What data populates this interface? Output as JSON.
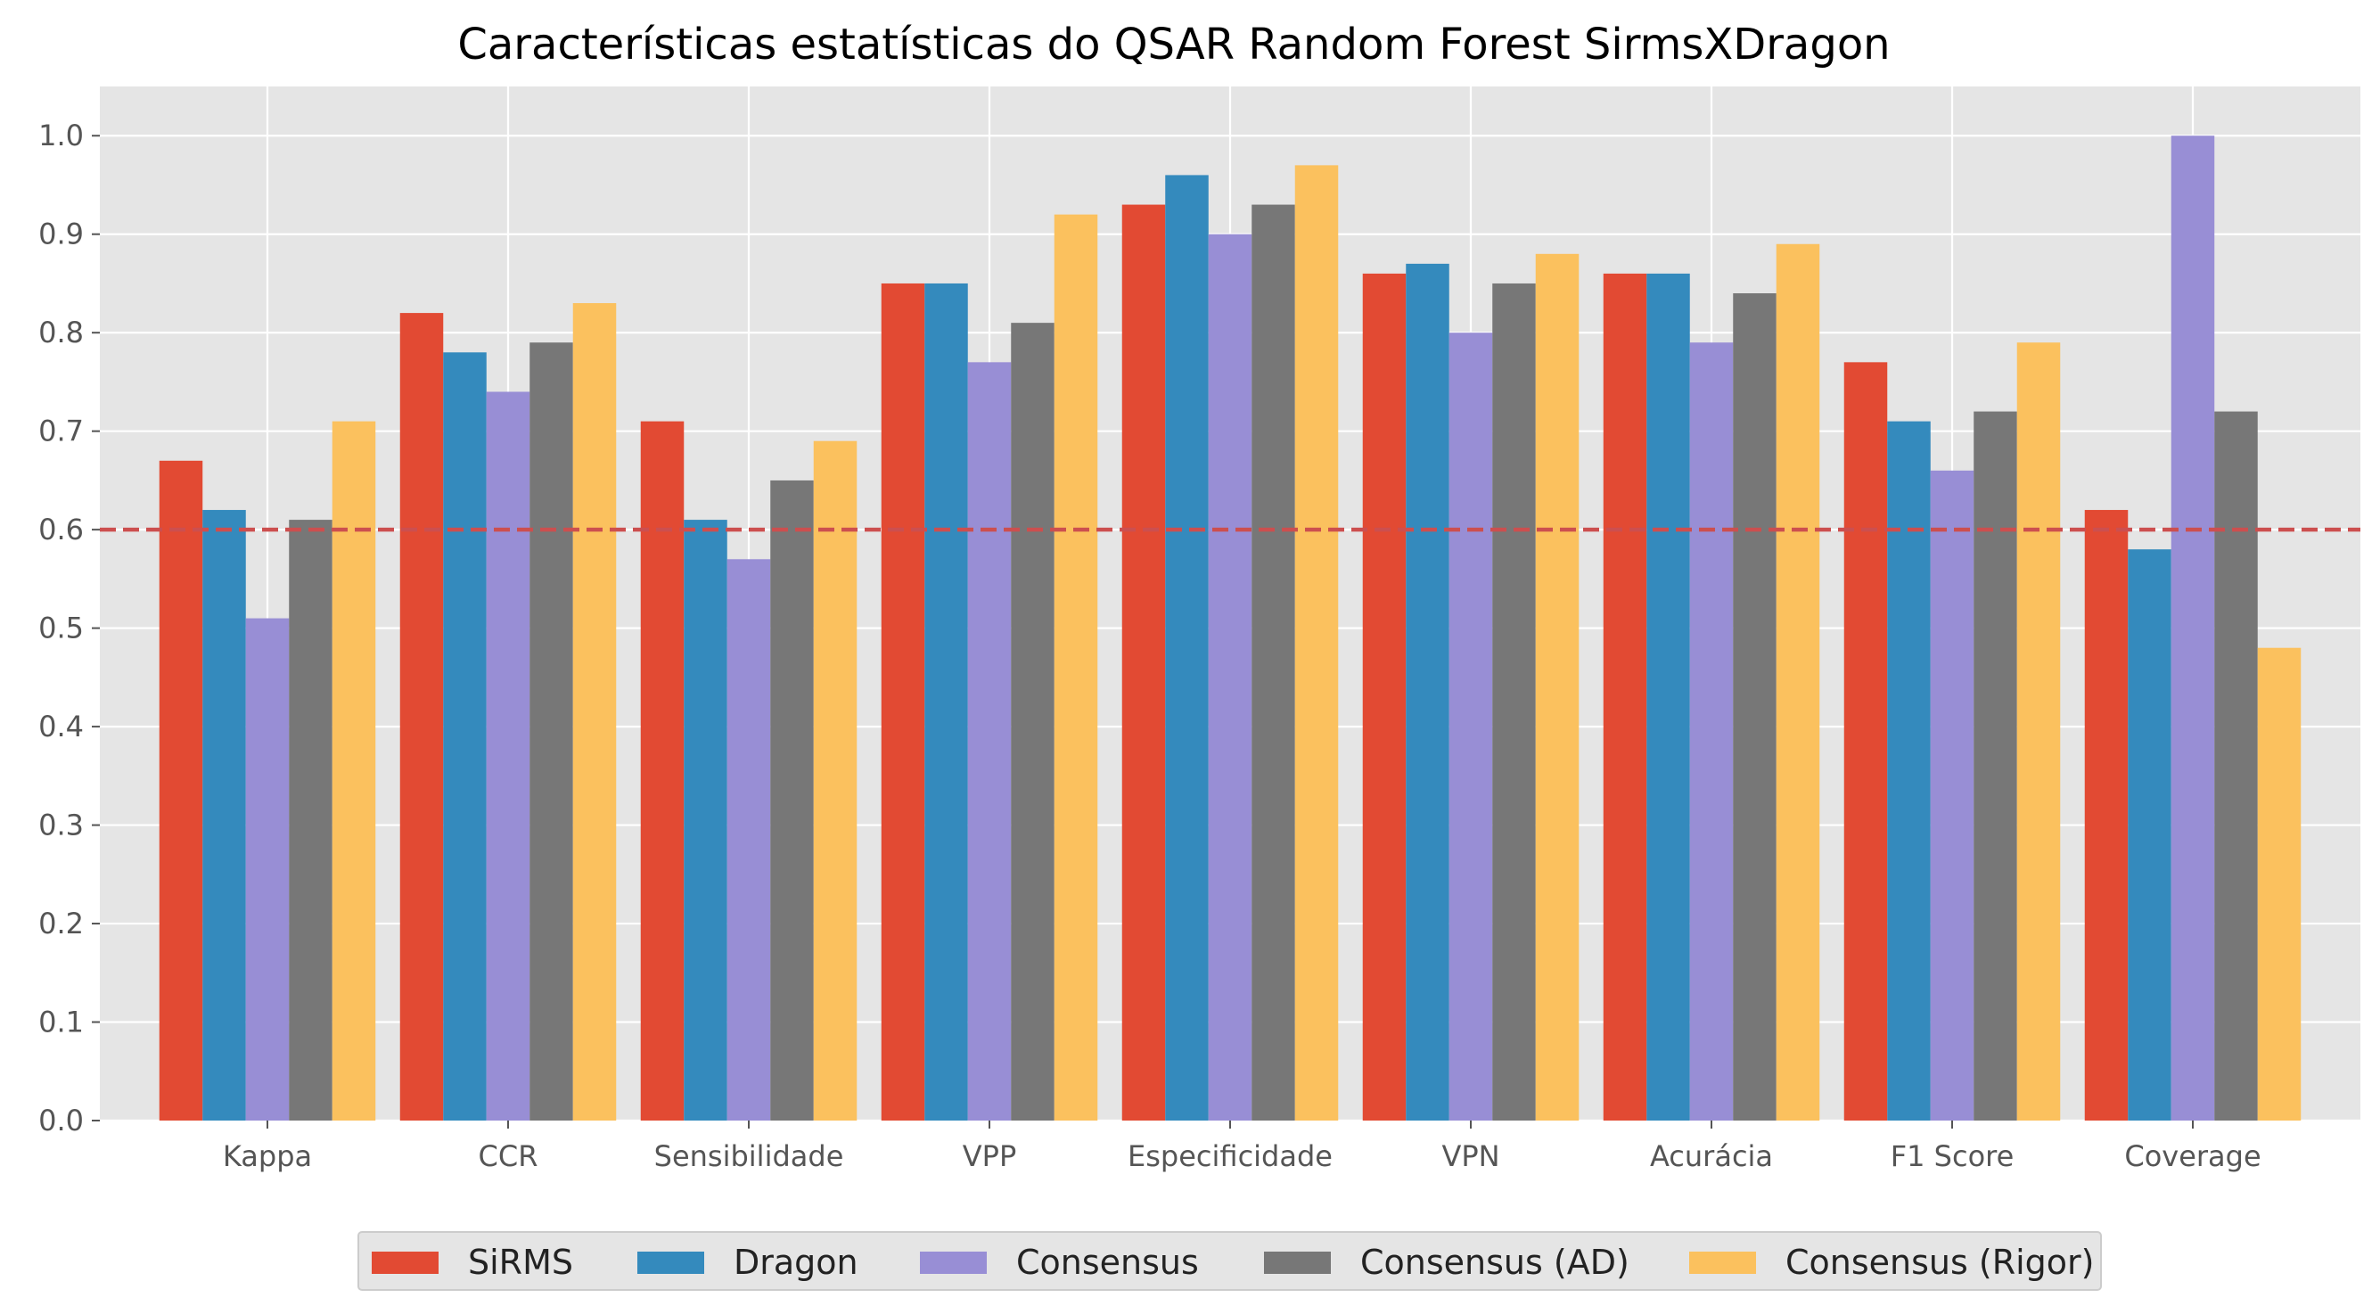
{
  "chart_data": {
    "type": "bar",
    "title": "Características estatísticas do QSAR Random Forest SirmsXDragon",
    "xlabel": "",
    "ylabel": "",
    "categories": [
      "Kappa",
      "CCR",
      "Sensibilidade",
      "VPP",
      "Especificidade",
      "VPN",
      "Acurácia",
      "F1 Score",
      "Coverage"
    ],
    "ylim": [
      0.0,
      1.05
    ],
    "yticks": [
      0.0,
      0.1,
      0.2,
      0.3,
      0.4,
      0.5,
      0.6,
      0.7,
      0.8,
      0.9,
      1.0
    ],
    "ytick_labels": [
      "0.0",
      "0.1",
      "0.2",
      "0.3",
      "0.4",
      "0.5",
      "0.6",
      "0.7",
      "0.8",
      "0.9",
      "1.0"
    ],
    "grid": true,
    "background": "#e5e5e5",
    "reference_line": {
      "y": 0.6,
      "style": "dashed",
      "color": "#cc4f4f"
    },
    "legend_placement": "bottom-center",
    "series": [
      {
        "name": "SiRMS",
        "color": "#e24a33",
        "values": [
          0.67,
          0.82,
          0.71,
          0.85,
          0.93,
          0.86,
          0.86,
          0.77,
          0.62
        ]
      },
      {
        "name": "Dragon",
        "color": "#348abd",
        "values": [
          0.62,
          0.78,
          0.61,
          0.85,
          0.96,
          0.87,
          0.86,
          0.71,
          0.58
        ]
      },
      {
        "name": "Consensus",
        "color": "#988ed5",
        "values": [
          0.51,
          0.74,
          0.57,
          0.77,
          0.9,
          0.8,
          0.79,
          0.66,
          1.0
        ]
      },
      {
        "name": "Consensus (AD)",
        "color": "#777777",
        "values": [
          0.61,
          0.79,
          0.65,
          0.81,
          0.93,
          0.85,
          0.84,
          0.72,
          0.72
        ]
      },
      {
        "name": "Consensus (Rigor)",
        "color": "#fbc15e",
        "values": [
          0.71,
          0.83,
          0.69,
          0.92,
          0.97,
          0.88,
          0.89,
          0.79,
          0.48
        ]
      }
    ]
  }
}
